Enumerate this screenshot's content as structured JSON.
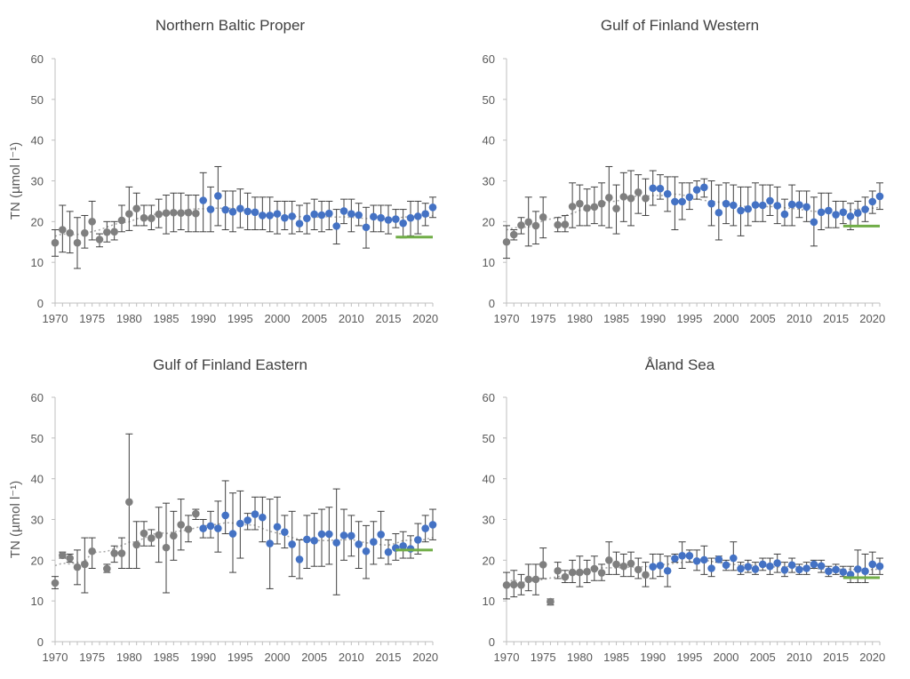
{
  "colors": {
    "historic": "#7f7f7f",
    "recent": "#4472c4",
    "target": "#70ad47",
    "trend": "#a6a6a6",
    "axis": "#bfbfbf",
    "errorbar": "#404040"
  },
  "chart_data": [
    {
      "type": "scatter",
      "title": "Northern Baltic Proper",
      "ylabel": "TN (µmol l⁻¹)",
      "ylim": [
        0,
        60
      ],
      "xlim": [
        1970,
        2021
      ],
      "yticks": [
        0,
        10,
        20,
        30,
        40,
        50,
        60
      ],
      "xticks": [
        1970,
        1975,
        1980,
        1985,
        1990,
        1995,
        2000,
        2005,
        2010,
        2015,
        2020
      ],
      "target": {
        "x_start": 2016,
        "x_end": 2021,
        "y": 16.2
      },
      "series": [
        {
          "color": "historic",
          "x": [
            1970,
            1971,
            1972,
            1973,
            1974,
            1975,
            1976,
            1977,
            1978,
            1979,
            1980,
            1981,
            1982,
            1983,
            1984,
            1985,
            1986,
            1987,
            1988,
            1989
          ],
          "y": [
            14.8,
            18.0,
            17.2,
            14.8,
            17.2,
            20.0,
            15.6,
            17.4,
            17.5,
            20.3,
            21.9,
            23.2,
            20.9,
            20.8,
            21.8,
            22.1,
            22.2,
            22.1,
            22.2,
            22.0
          ],
          "lo": [
            11.5,
            12.5,
            12.3,
            8.5,
            13.5,
            15.5,
            13.8,
            15.0,
            15.5,
            17.5,
            17.8,
            19.0,
            19.0,
            18.0,
            18.5,
            17.0,
            17.5,
            18.0,
            17.5,
            17.5
          ],
          "hi": [
            18.0,
            24.0,
            22.5,
            21.0,
            21.5,
            25.0,
            17.0,
            20.0,
            20.0,
            24.0,
            28.5,
            27.0,
            24.0,
            24.0,
            25.5,
            26.5,
            27.0,
            27.0,
            26.5,
            26.5
          ]
        },
        {
          "color": "recent",
          "x": [
            1990,
            1991,
            1992,
            1993,
            1994,
            1995,
            1996,
            1997,
            1998,
            1999,
            2000,
            2001,
            2002,
            2003,
            2004,
            2005,
            2006,
            2007,
            2008,
            2009,
            2010,
            2011,
            2012,
            2013,
            2014,
            2015,
            2016,
            2017,
            2018,
            2019,
            2020,
            2021
          ],
          "y": [
            25.2,
            23.0,
            26.3,
            22.9,
            22.4,
            23.2,
            22.5,
            22.3,
            21.5,
            21.5,
            21.9,
            20.9,
            21.3,
            19.5,
            20.8,
            21.8,
            21.6,
            22.0,
            18.9,
            22.6,
            21.9,
            21.6,
            18.6,
            21.2,
            20.9,
            20.4,
            20.6,
            19.6,
            20.9,
            21.3,
            21.9,
            23.5
          ],
          "lo": [
            17.5,
            17.5,
            19.0,
            18.0,
            17.5,
            18.5,
            18.0,
            18.0,
            18.0,
            17.5,
            17.0,
            18.0,
            17.0,
            17.5,
            17.0,
            18.0,
            17.5,
            18.0,
            14.5,
            19.5,
            17.5,
            19.0,
            13.5,
            17.5,
            17.5,
            17.0,
            18.5,
            16.0,
            16.5,
            17.0,
            19.0,
            21.0
          ],
          "hi": [
            32.0,
            28.5,
            33.5,
            27.5,
            27.5,
            28.0,
            27.0,
            26.0,
            26.0,
            26.0,
            25.0,
            25.0,
            25.0,
            24.0,
            24.5,
            25.5,
            25.0,
            25.0,
            23.0,
            25.5,
            25.5,
            24.5,
            23.5,
            24.0,
            24.0,
            24.0,
            23.0,
            23.0,
            25.0,
            25.0,
            24.5,
            26.0
          ]
        }
      ]
    },
    {
      "type": "scatter",
      "title": "Gulf of Finland Western",
      "ylabel": "",
      "ylim": [
        0,
        60
      ],
      "xlim": [
        1970,
        2021
      ],
      "yticks": [
        0,
        10,
        20,
        30,
        40,
        50,
        60
      ],
      "xticks": [
        1970,
        1975,
        1980,
        1985,
        1990,
        1995,
        2000,
        2005,
        2010,
        2015,
        2020
      ],
      "target": {
        "x_start": 2016,
        "x_end": 2021,
        "y": 18.9
      },
      "series": [
        {
          "color": "historic",
          "x": [
            1970,
            1971,
            1972,
            1973,
            1974,
            1975,
            1977,
            1978,
            1979,
            1980,
            1981,
            1982,
            1983,
            1984,
            1985,
            1986,
            1987,
            1988,
            1989
          ],
          "y": [
            15.0,
            16.8,
            19.1,
            19.9,
            19.0,
            21.1,
            19.2,
            19.3,
            23.7,
            24.4,
            23.3,
            23.6,
            24.4,
            25.9,
            23.2,
            26.1,
            25.7,
            27.2,
            25.7
          ],
          "lo": [
            11.0,
            15.5,
            17.0,
            14.0,
            14.5,
            16.0,
            17.5,
            17.5,
            18.5,
            19.0,
            19.0,
            19.5,
            19.0,
            18.5,
            17.0,
            20.0,
            19.0,
            22.0,
            21.5
          ],
          "hi": [
            19.0,
            18.0,
            21.0,
            26.0,
            22.5,
            26.0,
            21.0,
            21.5,
            29.5,
            29.0,
            28.0,
            28.5,
            29.5,
            33.5,
            29.0,
            32.0,
            32.5,
            31.5,
            30.5
          ]
        },
        {
          "color": "recent",
          "x": [
            1990,
            1991,
            1992,
            1993,
            1994,
            1995,
            1996,
            1997,
            1998,
            1999,
            2000,
            2001,
            2002,
            2003,
            2004,
            2005,
            2006,
            2007,
            2008,
            2009,
            2010,
            2011,
            2012,
            2013,
            2014,
            2015,
            2016,
            2017,
            2018,
            2019,
            2020,
            2021
          ],
          "y": [
            28.2,
            28.1,
            26.8,
            24.9,
            24.9,
            26.0,
            27.8,
            28.4,
            24.4,
            22.2,
            24.4,
            24.0,
            22.7,
            23.1,
            24.1,
            24.0,
            25.1,
            23.9,
            21.8,
            24.2,
            24.1,
            23.6,
            19.9,
            22.3,
            22.7,
            21.7,
            22.3,
            21.3,
            22.1,
            23.0,
            24.9,
            26.2
          ],
          "lo": [
            24.0,
            25.5,
            22.5,
            18.0,
            20.5,
            23.0,
            25.5,
            26.0,
            19.0,
            15.5,
            19.5,
            19.0,
            16.5,
            19.0,
            20.0,
            20.0,
            21.5,
            19.5,
            19.0,
            19.0,
            21.0,
            20.0,
            14.0,
            18.0,
            18.5,
            18.5,
            19.5,
            18.0,
            19.0,
            20.0,
            22.0,
            23.0
          ],
          "hi": [
            32.5,
            31.5,
            31.0,
            31.0,
            29.5,
            29.5,
            30.0,
            30.5,
            30.0,
            29.0,
            29.5,
            29.0,
            28.5,
            28.5,
            29.5,
            29.0,
            29.0,
            28.5,
            25.5,
            29.0,
            27.5,
            27.5,
            26.0,
            27.0,
            27.0,
            25.0,
            25.0,
            24.5,
            25.0,
            26.0,
            27.5,
            29.5
          ]
        }
      ]
    },
    {
      "type": "scatter",
      "title": "Gulf of Finland Eastern",
      "ylabel": "TN (µmol l⁻¹)",
      "ylim": [
        0,
        60
      ],
      "xlim": [
        1970,
        2021
      ],
      "yticks": [
        0,
        10,
        20,
        30,
        40,
        50,
        60
      ],
      "xticks": [
        1970,
        1975,
        1980,
        1985,
        1990,
        1995,
        2000,
        2005,
        2010,
        2015,
        2020
      ],
      "target": {
        "x_start": 2016,
        "x_end": 2021,
        "y": 22.5
      },
      "series": [
        {
          "color": "historic",
          "x": [
            1970,
            1971,
            1972,
            1973,
            1974,
            1975,
            1977,
            1978,
            1979,
            1980,
            1981,
            1982,
            1983,
            1984,
            1985,
            1986,
            1987,
            1988,
            1989
          ],
          "y": [
            14.4,
            21.2,
            20.5,
            18.3,
            19.0,
            22.2,
            17.9,
            21.7,
            21.7,
            34.3,
            23.8,
            26.6,
            25.4,
            26.2,
            23.1,
            26.0,
            28.7,
            27.6,
            31.4
          ],
          "lo": [
            13.0,
            20.5,
            19.5,
            14.0,
            12.0,
            18.0,
            17.0,
            19.5,
            18.0,
            18.0,
            18.0,
            23.5,
            23.5,
            19.5,
            12.0,
            20.0,
            22.5,
            24.5,
            30.0
          ],
          "hi": [
            16.0,
            22.0,
            21.5,
            22.5,
            25.5,
            25.5,
            19.0,
            23.5,
            25.5,
            51.0,
            29.5,
            29.5,
            27.5,
            33.0,
            34.0,
            32.0,
            35.0,
            31.0,
            32.5
          ]
        },
        {
          "color": "recent",
          "x": [
            1990,
            1991,
            1992,
            1993,
            1994,
            1995,
            1996,
            1997,
            1998,
            1999,
            2000,
            2001,
            2002,
            2003,
            2004,
            2005,
            2006,
            2007,
            2008,
            2009,
            2010,
            2011,
            2012,
            2013,
            2014,
            2015,
            2016,
            2017,
            2018,
            2019,
            2020,
            2021
          ],
          "y": [
            27.8,
            28.4,
            27.8,
            31.0,
            26.5,
            29.0,
            29.8,
            31.3,
            30.5,
            24.1,
            28.2,
            26.9,
            23.9,
            20.2,
            25.1,
            24.8,
            26.4,
            26.4,
            24.3,
            26.1,
            26.0,
            23.9,
            22.2,
            24.5,
            26.3,
            22.0,
            23.0,
            23.5,
            22.8,
            25.0,
            27.8,
            28.7
          ],
          "lo": [
            25.5,
            25.5,
            22.0,
            26.5,
            17.0,
            20.5,
            27.5,
            27.5,
            24.5,
            13.0,
            24.0,
            23.0,
            16.0,
            15.5,
            18.0,
            18.5,
            18.5,
            19.0,
            11.5,
            20.0,
            21.0,
            18.0,
            15.5,
            19.0,
            20.5,
            19.0,
            20.0,
            20.5,
            20.5,
            21.5,
            24.5,
            25.0
          ],
          "hi": [
            30.0,
            32.0,
            34.5,
            39.5,
            36.5,
            37.0,
            31.5,
            35.5,
            35.5,
            35.0,
            35.5,
            31.0,
            32.0,
            25.0,
            31.0,
            31.5,
            32.5,
            33.0,
            37.5,
            32.5,
            31.0,
            29.5,
            28.5,
            29.5,
            32.0,
            25.0,
            26.5,
            27.0,
            26.0,
            29.0,
            31.0,
            32.5
          ]
        }
      ]
    },
    {
      "type": "scatter",
      "title": "Åland Sea",
      "ylabel": "",
      "ylim": [
        0,
        60
      ],
      "xlim": [
        1970,
        2021
      ],
      "yticks": [
        0,
        10,
        20,
        30,
        40,
        50,
        60
      ],
      "xticks": [
        1970,
        1975,
        1980,
        1985,
        1990,
        1995,
        2000,
        2005,
        2010,
        2015,
        2020
      ],
      "target": {
        "x_start": 2016,
        "x_end": 2021,
        "y": 15.7
      },
      "series": [
        {
          "color": "historic",
          "x": [
            1970,
            1971,
            1972,
            1973,
            1974,
            1975,
            1976,
            1977,
            1978,
            1979,
            1980,
            1981,
            1982,
            1983,
            1984,
            1985,
            1986,
            1987,
            1988,
            1989
          ],
          "y": [
            13.9,
            14.0,
            13.9,
            15.3,
            15.3,
            18.9,
            9.8,
            17.4,
            15.9,
            17.0,
            17.0,
            17.2,
            17.9,
            16.9,
            20.0,
            19.0,
            18.5,
            19.2,
            17.7,
            16.4
          ],
          "lo": [
            10.5,
            11.0,
            11.5,
            12.5,
            11.5,
            15.5,
            9.0,
            15.5,
            14.5,
            14.5,
            13.5,
            14.5,
            15.0,
            15.0,
            16.5,
            16.5,
            16.0,
            16.0,
            15.5,
            13.5
          ],
          "hi": [
            17.0,
            17.5,
            16.5,
            19.0,
            19.0,
            23.0,
            10.5,
            19.5,
            17.5,
            20.0,
            21.0,
            20.0,
            21.0,
            19.0,
            24.5,
            22.0,
            21.5,
            22.0,
            20.5,
            19.5
          ]
        },
        {
          "color": "recent",
          "x": [
            1990,
            1991,
            1992,
            1993,
            1994,
            1995,
            1996,
            1997,
            1998,
            1999,
            2000,
            2001,
            2002,
            2003,
            2004,
            2005,
            2006,
            2007,
            2008,
            2009,
            2010,
            2011,
            2012,
            2013,
            2014,
            2015,
            2016,
            2017,
            2018,
            2019,
            2020,
            2021
          ],
          "y": [
            18.4,
            18.7,
            17.4,
            20.4,
            21.1,
            21.1,
            19.8,
            20.1,
            18.0,
            20.2,
            18.8,
            20.5,
            17.9,
            18.4,
            17.8,
            19.0,
            18.5,
            19.3,
            17.6,
            18.8,
            17.7,
            18.0,
            19.0,
            18.6,
            17.3,
            17.7,
            17.1,
            16.5,
            17.8,
            17.3,
            19.0,
            18.5
          ],
          "lo": [
            15.5,
            16.0,
            13.5,
            19.5,
            18.0,
            19.5,
            17.5,
            16.5,
            16.0,
            19.5,
            17.5,
            17.5,
            16.5,
            17.0,
            16.5,
            17.5,
            16.5,
            17.0,
            16.0,
            17.0,
            16.5,
            16.5,
            18.0,
            17.0,
            16.0,
            16.5,
            16.0,
            14.5,
            14.5,
            14.5,
            16.5,
            16.5
          ],
          "hi": [
            21.5,
            21.5,
            21.0,
            21.5,
            24.5,
            22.5,
            22.5,
            23.5,
            20.5,
            21.0,
            20.0,
            24.5,
            19.5,
            20.0,
            19.5,
            20.5,
            20.5,
            21.5,
            19.5,
            20.5,
            19.0,
            19.5,
            20.0,
            20.0,
            18.5,
            19.0,
            18.5,
            18.5,
            22.5,
            21.5,
            22.0,
            20.5
          ]
        }
      ]
    }
  ]
}
